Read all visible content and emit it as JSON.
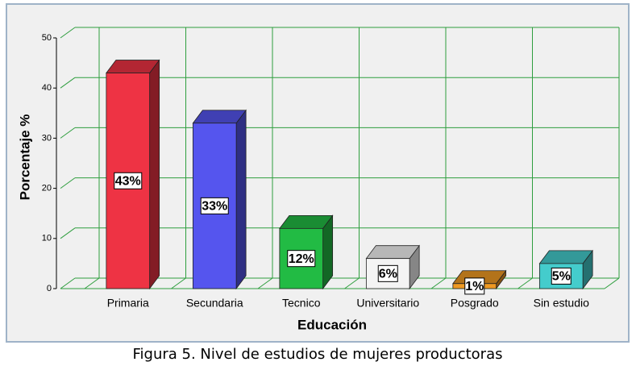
{
  "chart_data": {
    "type": "bar3d",
    "x_label": "Educación",
    "y_label": "Porcentaje %",
    "caption": "Figura 5. Nivel de estudios de mujeres productoras",
    "categories": [
      "Primaria",
      "Secundaria",
      "Tecnico",
      "Universitario",
      "Posgrado",
      "Sin estudio"
    ],
    "values": [
      43,
      33,
      12,
      6,
      1,
      5
    ],
    "value_labels": [
      "43%",
      "33%",
      "12%",
      "6%",
      "1%",
      "5%"
    ],
    "colors": [
      "#ee3344",
      "#5555ee",
      "#22bb44",
      "#f4f4f4",
      "#ee9922",
      "#44cccc"
    ],
    "ylim": [
      0,
      50
    ],
    "yticks": [
      0,
      10,
      20,
      30,
      40,
      50
    ],
    "grid": true,
    "grid_color": "#2e9e3e"
  }
}
